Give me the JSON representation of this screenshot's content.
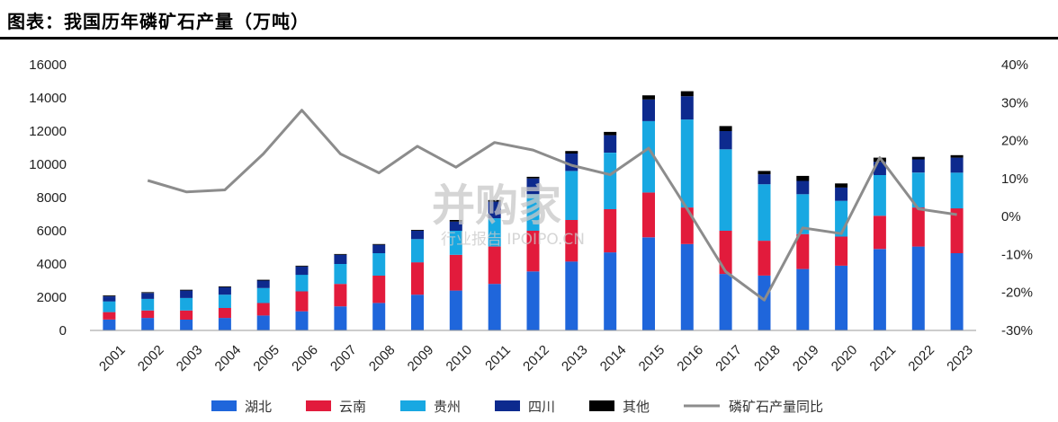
{
  "header": {
    "title": "图表：我国历年磷矿石产量（万吨）"
  },
  "watermark": {
    "brand": "并购家",
    "sub": "行业报告 IPOIPO.CN"
  },
  "chart_data": {
    "type": "bar",
    "stacked": true,
    "categories": [
      "2001",
      "2002",
      "2003",
      "2004",
      "2005",
      "2006",
      "2007",
      "2008",
      "2009",
      "2010",
      "2011",
      "2012",
      "2013",
      "2014",
      "2015",
      "2016",
      "2017",
      "2018",
      "2019",
      "2020",
      "2021",
      "2022",
      "2023"
    ],
    "series": [
      {
        "name": "湖北",
        "color": "#1F66DB",
        "values": [
          650,
          750,
          650,
          750,
          900,
          1150,
          1450,
          1650,
          2150,
          2400,
          2800,
          3550,
          4150,
          4700,
          5600,
          5200,
          3400,
          3300,
          3700,
          3900,
          4900,
          5050,
          4650
        ]
      },
      {
        "name": "云南",
        "color": "#E21B3C",
        "values": [
          450,
          450,
          550,
          600,
          750,
          1200,
          1350,
          1650,
          1950,
          2150,
          2250,
          2450,
          2500,
          2600,
          2700,
          2200,
          2600,
          2100,
          2100,
          1750,
          2000,
          2350,
          2700
        ]
      },
      {
        "name": "贵州",
        "color": "#18A8E2",
        "values": [
          650,
          700,
          750,
          800,
          900,
          1000,
          1200,
          1350,
          1400,
          1450,
          1700,
          2200,
          2950,
          3400,
          4300,
          5300,
          4900,
          3400,
          2400,
          2150,
          2450,
          2100,
          2150
        ]
      },
      {
        "name": "四川",
        "color": "#0D2A8E",
        "values": [
          300,
          350,
          450,
          450,
          450,
          500,
          550,
          500,
          500,
          550,
          1000,
          950,
          1050,
          1050,
          1300,
          1400,
          1100,
          600,
          800,
          800,
          800,
          800,
          900
        ]
      },
      {
        "name": "其他",
        "color": "#000000",
        "values": [
          50,
          50,
          50,
          50,
          50,
          50,
          50,
          50,
          50,
          100,
          100,
          100,
          150,
          200,
          250,
          300,
          300,
          200,
          300,
          250,
          250,
          150,
          150
        ]
      }
    ],
    "line": {
      "name": "磷矿石产量同比",
      "color": "#8C8C8C",
      "axis": "right",
      "values": [
        null,
        9.5,
        6.5,
        7,
        16.5,
        28,
        16.5,
        11.5,
        18.5,
        13,
        19.5,
        17.5,
        13.5,
        11,
        18,
        2,
        -14.5,
        -22,
        -3,
        -4.5,
        15.5,
        2,
        0.5
      ]
    },
    "y_left": {
      "min": 0,
      "max": 16000,
      "ticks": [
        "0",
        "2000",
        "4000",
        "6000",
        "8000",
        "10000",
        "12000",
        "14000",
        "16000"
      ]
    },
    "y_right": {
      "min": -30,
      "max": 40,
      "ticks": [
        "-30%",
        "-20%",
        "-10%",
        "0%",
        "10%",
        "20%",
        "30%",
        "40%"
      ]
    },
    "grid": false,
    "legend_position": "bottom"
  }
}
